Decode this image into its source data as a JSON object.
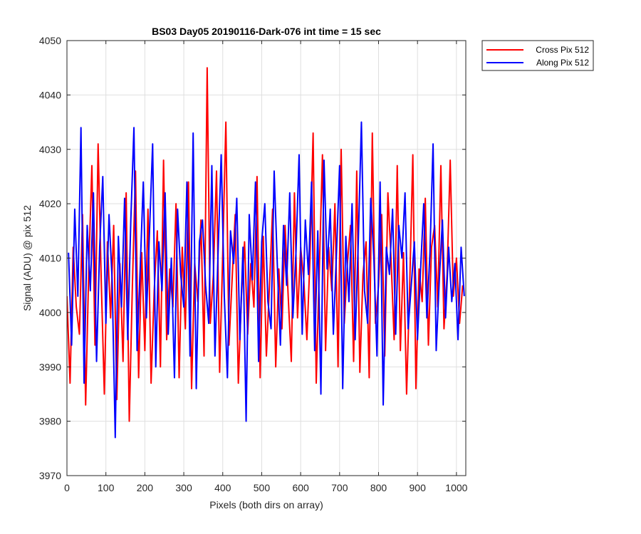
{
  "chart_data": {
    "type": "line",
    "title": "BS03 Day05 20190116-Dark-076 int time = 15 sec",
    "xlabel": "Pixels (both dirs on array)",
    "ylabel": "Signal (ADU) @ pix 512",
    "xlim": [
      0,
      1024
    ],
    "ylim": [
      3970,
      4050
    ],
    "x_ticks": [
      0,
      100,
      200,
      300,
      400,
      500,
      600,
      700,
      800,
      900,
      1000
    ],
    "y_ticks": [
      3970,
      3980,
      3990,
      4000,
      4010,
      4020,
      4030,
      4040,
      4050
    ],
    "grid": true,
    "legend_position": "outside-top-right",
    "series": [
      {
        "name": "Cross Pix 512",
        "color": "#ff0000",
        "x_start": 0,
        "x_step": 8,
        "values": [
          4003,
          3987,
          4012,
          4001,
          3996,
          4018,
          3983,
          4008,
          4027,
          3994,
          4031,
          4006,
          3985,
          4013,
          3999,
          4016,
          3984,
          4009,
          3991,
          4022,
          3980,
          4005,
          4026,
          3988,
          4011,
          3993,
          4019,
          3987,
          4004,
          4015,
          3990,
          4028,
          3995,
          4008,
          4001,
          4020,
          3988,
          4012,
          3997,
          4024,
          3986,
          4009,
          4002,
          4017,
          3992,
          4045,
          3998,
          4007,
          4026,
          3989,
          4011,
          4035,
          3994,
          4006,
          4018,
          3987,
          4003,
          4013,
          3996,
          4009,
          4001,
          4025,
          3988,
          4014,
          3992,
          4005,
          4019,
          3990,
          4008,
          3997,
          4016,
          4003,
          3991,
          4022,
          3999,
          4012,
          4006,
          3995,
          4010,
          4033,
          3987,
          4008,
          4029,
          3993,
          4012,
          4004,
          4020,
          3990,
          4030,
          3998,
          4009,
          4016,
          3991,
          4026,
          3989,
          4007,
          4013,
          3988,
          4033,
          3998,
          4005,
          4018,
          3992,
          4022,
          4010,
          3995,
          4027,
          3993,
          4011,
          3985,
          4005,
          4029,
          3986,
          4008,
          4002,
          4021,
          3994,
          4012,
          4016,
          4001,
          4027,
          3997,
          4007,
          4028,
          4003,
          4010,
          3998,
          4005
        ]
      },
      {
        "name": "Along Pix 512",
        "color": "#0000ff",
        "x_start": 4,
        "x_step": 8,
        "values": [
          4011,
          3994,
          4019,
          4003,
          4034,
          3987,
          4016,
          4004,
          4022,
          3991,
          4012,
          4025,
          3998,
          4018,
          4006,
          3977,
          4014,
          4001,
          4021,
          3995,
          4017,
          4034,
          3993,
          4008,
          4024,
          3999,
          4015,
          4031,
          3990,
          4013,
          4004,
          4022,
          3996,
          4010,
          3988,
          4019,
          4007,
          4001,
          4024,
          3992,
          4033,
          3986,
          4013,
          4017,
          4005,
          3998,
          4027,
          3992,
          4011,
          4029,
          4003,
          3988,
          4015,
          4009,
          4021,
          3995,
          4012,
          3980,
          4018,
          4006,
          4024,
          3991,
          4013,
          4020,
          4002,
          3997,
          4026,
          4009,
          3994,
          4016,
          4005,
          4022,
          3999,
          4011,
          4029,
          3996,
          4017,
          4007,
          4024,
          3993,
          4015,
          3985,
          4028,
          4008,
          4019,
          3996,
          4011,
          4027,
          3986,
          4014,
          4002,
          4020,
          3995,
          4013,
          4035,
          4004,
          3998,
          4021,
          4010,
          3992,
          4024,
          3983,
          4012,
          4007,
          4019,
          3996,
          4016,
          4010,
          4022,
          3997,
          4005,
          4013,
          3995,
          4008,
          4020,
          3999,
          4011,
          4031,
          3993,
          4006,
          4017,
          3999,
          4012,
          4002,
          4009,
          3995,
          4012,
          4003
        ]
      }
    ]
  }
}
